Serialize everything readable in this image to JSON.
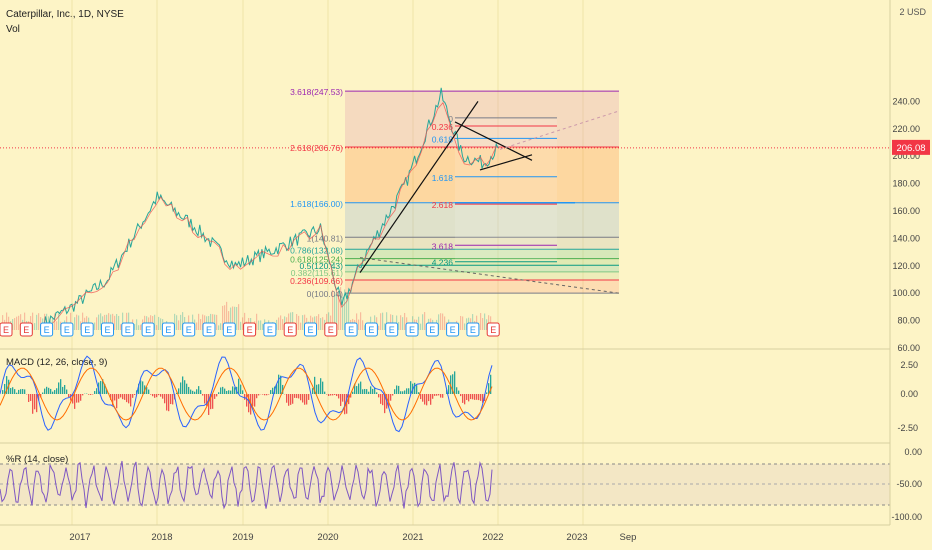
{
  "header": {
    "title": "Caterpillar, Inc., 1D, NYSE",
    "vol": "Vol",
    "currency": "2 USD"
  },
  "price_axis": {
    "ticks": [
      "240.00",
      "220.00",
      "200.00",
      "180.00",
      "160.00",
      "140.00",
      "120.00",
      "100.00",
      "80.00",
      "60.00"
    ],
    "last_price": "206.08"
  },
  "fib_extension": {
    "levels": [
      "3.618(247.53)",
      "2.618(206.76)",
      "1.618(166.00)",
      "1(140.81)",
      "0.786(132.08)",
      "0.618(125.24)",
      "0.5(120.43)",
      "0.382(115.61)",
      "0.236(109.66)",
      "0(100.04)"
    ],
    "colors": [
      "#9c27b0",
      "#f23645",
      "#2196f3",
      "#787b86",
      "#26a69a",
      "#4caf50",
      "#089981",
      "#81c784",
      "#f23645",
      "#787b86"
    ]
  },
  "fib_small": {
    "levels": [
      "0",
      "0.236",
      "0.618",
      "1.618",
      "2.618",
      "3.618",
      "4.236"
    ],
    "colors": [
      "#787b86",
      "#f23645",
      "#2196f3",
      "#2196f3",
      "#f23645",
      "#9c27b0",
      "#089981"
    ]
  },
  "earnings": {
    "label": "E",
    "count": 25
  },
  "macd": {
    "label": "MACD (12, 26, close, 9)",
    "ticks": [
      "2.50",
      "0.00",
      "-2.50"
    ]
  },
  "wr": {
    "label": "%R (14, close)",
    "ticks": [
      "0.00",
      "-50.00",
      "-100.00"
    ]
  },
  "time_axis": {
    "labels": [
      "2017",
      "2018",
      "2019",
      "2020",
      "2021",
      "2022",
      "2023",
      "Sep"
    ]
  },
  "chart_data": {
    "type": "line",
    "title": "Caterpillar, Inc., 1D, NYSE",
    "x": [
      "2016-09",
      "2017-01",
      "2017-06",
      "2018-01",
      "2018-06",
      "2018-12",
      "2019-06",
      "2019-12",
      "2020-03",
      "2020-06",
      "2020-12",
      "2021-05",
      "2021-08",
      "2021-11",
      "2022-01"
    ],
    "series": [
      {
        "values": [
          78,
          90,
          110,
          170,
          150,
          120,
          133,
          147,
          90,
          125,
          180,
          245,
          200,
          195,
          206
        ]
      }
    ],
    "ylim": [
      60,
      255
    ],
    "last_value": 206.08,
    "fib_extension_levels": [
      {
        "ratio": 3.618,
        "price": 247.53
      },
      {
        "ratio": 2.618,
        "price": 206.76
      },
      {
        "ratio": 1.618,
        "price": 166.0
      },
      {
        "ratio": 1,
        "price": 140.81
      },
      {
        "ratio": 0.786,
        "price": 132.08
      },
      {
        "ratio": 0.618,
        "price": 125.24
      },
      {
        "ratio": 0.5,
        "price": 120.43
      },
      {
        "ratio": 0.382,
        "price": 115.61
      },
      {
        "ratio": 0.236,
        "price": 109.66
      },
      {
        "ratio": 0,
        "price": 100.04
      }
    ]
  }
}
